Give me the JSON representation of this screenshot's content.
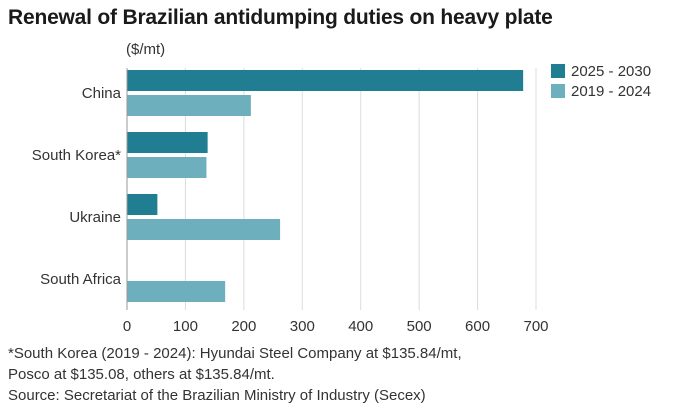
{
  "title": "Renewal of Brazilian antidumping duties on heavy plate",
  "units": "($/mt)",
  "colors": {
    "series_2025_2030": "#217e92",
    "series_2019_2024": "#6eafbd",
    "axis": "#999999",
    "grid": "#dcdcdc"
  },
  "chart_data": {
    "type": "bar",
    "orientation": "horizontal",
    "title": "Renewal of Brazilian antidumping duties on heavy plate",
    "xlabel": "",
    "ylabel": "($/mt)",
    "categories": [
      "China",
      "South Korea*",
      "Ukraine",
      "South Africa"
    ],
    "series": [
      {
        "name": "2025 - 2030",
        "values": [
          678,
          138,
          52,
          0
        ]
      },
      {
        "name": "2019 - 2024",
        "values": [
          212,
          136,
          262,
          168
        ]
      }
    ],
    "xlim": [
      0,
      700
    ],
    "xticks": [
      "0",
      "100",
      "200",
      "300",
      "400",
      "500",
      "600",
      "700"
    ],
    "legend": "top-right",
    "grid": true
  },
  "footnotes": [
    "*South Korea (2019 - 2024): Hyundai Steel Company at $135.84/mt,",
    "Posco at $135.08, others at $135.84/mt.",
    "Source: Secretariat of the Brazilian Ministry of Industry (Secex)"
  ]
}
